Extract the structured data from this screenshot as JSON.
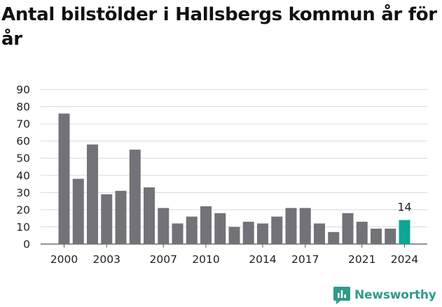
{
  "title": "Antal bilstölder i Hallsbergs kommun år för år",
  "brand": {
    "name": "Newsworthy",
    "color": "#2e9a8c"
  },
  "colors": {
    "bar": "#737278",
    "highlight": "#0da596",
    "grid": "#dadada",
    "text": "#222222"
  },
  "chart_data": {
    "type": "bar",
    "title": "Antal bilstölder i Hallsbergs kommun år för år",
    "xlabel": "",
    "ylabel": "",
    "categories": [
      "2000",
      "2001",
      "2002",
      "2003",
      "2004",
      "2005",
      "2006",
      "2007",
      "2008",
      "2009",
      "2010",
      "2011",
      "2012",
      "2013",
      "2014",
      "2015",
      "2016",
      "2017",
      "2018",
      "2019",
      "2020",
      "2021",
      "2022",
      "2023",
      "2024"
    ],
    "values": [
      76,
      38,
      58,
      29,
      31,
      55,
      33,
      21,
      12,
      16,
      22,
      18,
      10,
      13,
      12,
      16,
      21,
      21,
      12,
      7,
      18,
      13,
      9,
      9,
      14
    ],
    "ylim": [
      0,
      90
    ],
    "yticks": [
      0,
      10,
      20,
      30,
      40,
      50,
      60,
      70,
      80,
      90
    ],
    "xtick_labels": [
      "2000",
      "2003",
      "2007",
      "2010",
      "2014",
      "2017",
      "2021",
      "2024"
    ],
    "highlight": {
      "category": "2024",
      "label": "14"
    },
    "grid": true,
    "legend": "none"
  }
}
